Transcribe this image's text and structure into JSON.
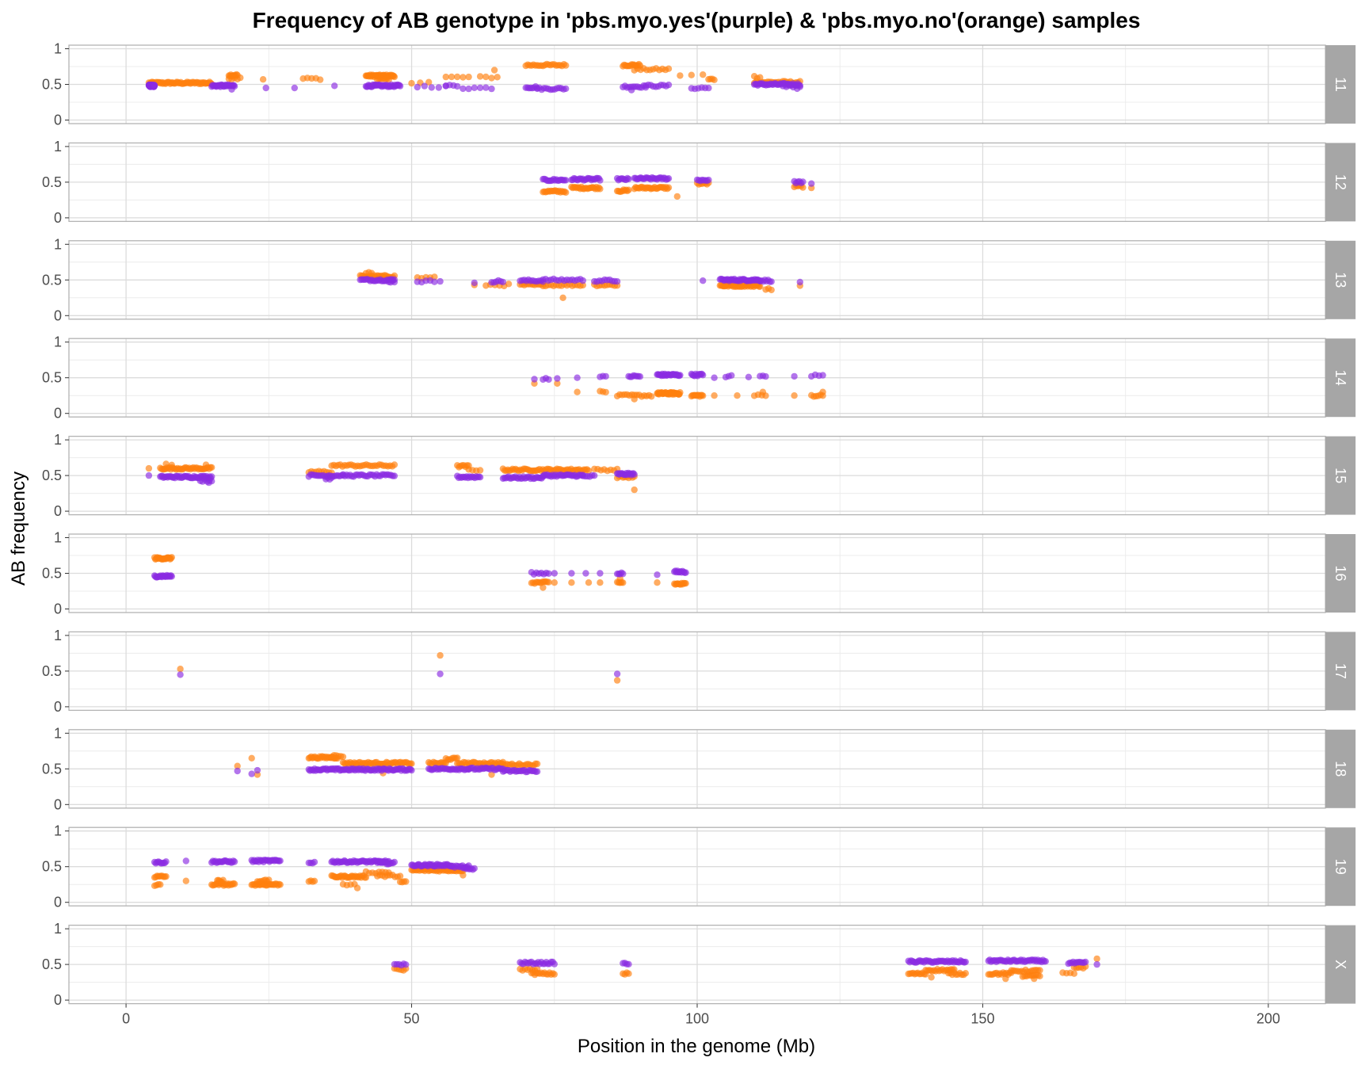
{
  "chart_data": {
    "type": "scatter",
    "title": "Frequency of AB genotype in 'pbs.myo.yes'(purple) & 'pbs.myo.no'(orange) samples",
    "xlabel": "Position in the genome (Mb)",
    "ylabel": "AB frequency",
    "xlim": [
      -10,
      210
    ],
    "ylim": [
      -0.05,
      1.05
    ],
    "x_ticks": [
      0,
      50,
      100,
      150,
      200
    ],
    "x_tick_labels": [
      "0",
      "50",
      "100",
      "150",
      "200"
    ],
    "y_ticks": [
      0,
      0.5,
      1
    ],
    "y_tick_labels": [
      "0",
      "0.5",
      "1"
    ],
    "grid": true,
    "facet_strip_color": "#a6a6a6",
    "panel_border_color": "#b3b3b3",
    "series": [
      {
        "key": "yes",
        "color": "#8a2be2"
      },
      {
        "key": "no",
        "color": "#ff7f0e"
      }
    ],
    "panels": [
      {
        "label": "11",
        "yes": [
          [
            4,
            5,
            55,
            0.48
          ],
          [
            15,
            19,
            30,
            0.48
          ],
          [
            24.5,
            0.45
          ],
          [
            29.5,
            0.45
          ],
          [
            36.5,
            0.48
          ],
          [
            42,
            48,
            40,
            0.48
          ],
          [
            51,
            56,
            5,
            0.47
          ],
          [
            56,
            58,
            4,
            0.48
          ],
          [
            59,
            64,
            6,
            0.45
          ],
          [
            70,
            72,
            8,
            0.46
          ],
          [
            72,
            77,
            14,
            0.44
          ],
          [
            87,
            91,
            12,
            0.47
          ],
          [
            91,
            95,
            10,
            0.48
          ],
          [
            99,
            102,
            6,
            0.45
          ],
          [
            110,
            118,
            40,
            0.5
          ],
          [
            115,
            118,
            6,
            0.47
          ],
          [
            117.5,
            0.44
          ],
          [
            88.5,
            0.42
          ],
          [
            18.5,
            0.43
          ]
        ],
        "no": [
          [
            4,
            15,
            60,
            0.52
          ],
          [
            18,
            19.5,
            10,
            0.63
          ],
          [
            24,
            0.57
          ],
          [
            31,
            34,
            5,
            0.58
          ],
          [
            42,
            47,
            40,
            0.62
          ],
          [
            44,
            46,
            8,
            0.57
          ],
          [
            50,
            53,
            3,
            0.53
          ],
          [
            56,
            60,
            5,
            0.6
          ],
          [
            62,
            65,
            4,
            0.6
          ],
          [
            64.5,
            0.7
          ],
          [
            70,
            77,
            22,
            0.77
          ],
          [
            87,
            90,
            15,
            0.77
          ],
          [
            89,
            95,
            12,
            0.71
          ],
          [
            97,
            101,
            3,
            0.63
          ],
          [
            102,
            103,
            4,
            0.57
          ],
          [
            110,
            118,
            25,
            0.53
          ],
          [
            110,
            111,
            3,
            0.6
          ],
          [
            18,
            20,
            5,
            0.58
          ]
        ]
      },
      {
        "label": "12",
        "yes": [
          [
            73,
            77,
            18,
            0.53
          ],
          [
            78,
            83,
            24,
            0.54
          ],
          [
            86,
            88,
            10,
            0.54
          ],
          [
            89,
            95,
            28,
            0.55
          ],
          [
            100,
            102,
            8,
            0.53
          ],
          [
            117,
            118.5,
            6,
            0.5
          ],
          [
            120,
            0.48
          ]
        ],
        "no": [
          [
            73,
            77,
            18,
            0.37
          ],
          [
            78,
            83,
            24,
            0.42
          ],
          [
            86,
            88,
            10,
            0.38
          ],
          [
            89,
            95,
            28,
            0.42
          ],
          [
            96.5,
            0.3
          ],
          [
            100,
            102,
            8,
            0.48
          ],
          [
            117,
            118.5,
            6,
            0.44
          ],
          [
            120,
            0.42
          ]
        ]
      },
      {
        "label": "13",
        "yes": [
          [
            41,
            47,
            25,
            0.5
          ],
          [
            46,
            47,
            4,
            0.48
          ],
          [
            51,
            54,
            5,
            0.48
          ],
          [
            55,
            0.48
          ],
          [
            61,
            0.46
          ],
          [
            64,
            66,
            6,
            0.48
          ],
          [
            69,
            73,
            12,
            0.49
          ],
          [
            73,
            80,
            16,
            0.5
          ],
          [
            82,
            86,
            10,
            0.49
          ],
          [
            101,
            0.49
          ],
          [
            104,
            111,
            40,
            0.5
          ],
          [
            111,
            113,
            8,
            0.49
          ],
          [
            118,
            0.47
          ]
        ],
        "no": [
          [
            41,
            47,
            25,
            0.55
          ],
          [
            42,
            43,
            3,
            0.6
          ],
          [
            51,
            54,
            5,
            0.53
          ],
          [
            61,
            0.43
          ],
          [
            63,
            67,
            6,
            0.43
          ],
          [
            69,
            73,
            12,
            0.43
          ],
          [
            73,
            80,
            16,
            0.43
          ],
          [
            76.5,
            0.25
          ],
          [
            82,
            86,
            10,
            0.43
          ],
          [
            104,
            111,
            40,
            0.42
          ],
          [
            112,
            113,
            3,
            0.37
          ],
          [
            118,
            0.42
          ]
        ]
      },
      {
        "label": "14",
        "yes": [
          [
            71.5,
            0.48
          ],
          [
            73,
            74,
            3,
            0.49
          ],
          [
            75.5,
            0.49
          ],
          [
            79,
            0.5
          ],
          [
            83,
            84,
            3,
            0.51
          ],
          [
            88,
            90,
            8,
            0.52
          ],
          [
            93,
            97,
            28,
            0.54
          ],
          [
            99,
            101,
            12,
            0.54
          ],
          [
            103,
            0.5
          ],
          [
            105,
            106,
            3,
            0.52
          ],
          [
            109,
            0.51
          ],
          [
            111,
            112,
            3,
            0.52
          ],
          [
            117,
            0.52
          ],
          [
            120,
            122,
            4,
            0.53
          ]
        ],
        "no": [
          [
            71.5,
            0.42
          ],
          [
            75.5,
            0.42
          ],
          [
            79,
            0.3
          ],
          [
            83,
            84,
            3,
            0.3
          ],
          [
            86,
            92,
            15,
            0.25
          ],
          [
            89,
            0.2
          ],
          [
            93,
            97,
            40,
            0.28
          ],
          [
            99,
            101,
            12,
            0.25
          ],
          [
            103,
            0.25
          ],
          [
            107,
            0.25
          ],
          [
            110,
            112,
            4,
            0.25
          ],
          [
            111.5,
            0.3
          ],
          [
            117,
            0.25
          ],
          [
            120,
            122,
            6,
            0.25
          ],
          [
            122,
            0.3
          ]
        ]
      },
      {
        "label": "15",
        "yes": [
          [
            4,
            0.5
          ],
          [
            6,
            15,
            50,
            0.48
          ],
          [
            13,
            15,
            6,
            0.43
          ],
          [
            14.5,
            0.4
          ],
          [
            32,
            38,
            20,
            0.5
          ],
          [
            35,
            36,
            4,
            0.46
          ],
          [
            38,
            47,
            30,
            0.5
          ],
          [
            58,
            62,
            18,
            0.48
          ],
          [
            66,
            73,
            30,
            0.47
          ],
          [
            73,
            80,
            30,
            0.5
          ],
          [
            80,
            82,
            6,
            0.49
          ],
          [
            86,
            89,
            18,
            0.52
          ]
        ],
        "no": [
          [
            4,
            0.6
          ],
          [
            6,
            15,
            40,
            0.6
          ],
          [
            7,
            8,
            2,
            0.65
          ],
          [
            14,
            0.65
          ],
          [
            32,
            36,
            10,
            0.55
          ],
          [
            36,
            47,
            30,
            0.64
          ],
          [
            58,
            60,
            8,
            0.63
          ],
          [
            60,
            62,
            4,
            0.58
          ],
          [
            66,
            81,
            55,
            0.58
          ],
          [
            82,
            86,
            8,
            0.58
          ],
          [
            86,
            89,
            10,
            0.48
          ],
          [
            89,
            0.3
          ]
        ]
      },
      {
        "label": "16",
        "yes": [
          [
            5,
            8,
            22,
            0.46
          ],
          [
            71,
            74,
            8,
            0.5
          ],
          [
            75,
            0.5
          ],
          [
            78,
            0.5
          ],
          [
            80.5,
            0.5
          ],
          [
            83,
            0.5
          ],
          [
            86,
            87,
            5,
            0.5
          ],
          [
            93,
            0.48
          ],
          [
            96,
            98,
            12,
            0.52
          ]
        ],
        "no": [
          [
            5,
            8,
            22,
            0.71
          ],
          [
            71,
            74,
            12,
            0.37
          ],
          [
            73,
            0.3
          ],
          [
            75,
            0.37
          ],
          [
            78,
            0.37
          ],
          [
            81,
            0.37
          ],
          [
            83,
            0.37
          ],
          [
            86,
            87,
            5,
            0.37
          ],
          [
            86.5,
            0.43
          ],
          [
            93,
            0.37
          ],
          [
            96,
            98,
            12,
            0.35
          ]
        ]
      },
      {
        "label": "17",
        "yes": [
          [
            9.5,
            0.45
          ],
          [
            55,
            0.46
          ],
          [
            86,
            0.46
          ]
        ],
        "no": [
          [
            9.5,
            0.53
          ],
          [
            55,
            0.72
          ],
          [
            86,
            0.37
          ]
        ]
      },
      {
        "label": "18",
        "yes": [
          [
            19.5,
            0.47
          ],
          [
            22,
            0.43
          ],
          [
            23,
            0.48
          ],
          [
            32,
            50,
            90,
            0.49
          ],
          [
            53,
            60,
            30,
            0.5
          ],
          [
            60,
            66,
            25,
            0.5
          ],
          [
            66,
            72,
            25,
            0.47
          ]
        ],
        "no": [
          [
            19.5,
            0.54
          ],
          [
            22,
            0.65
          ],
          [
            23,
            0.42
          ],
          [
            32,
            37,
            25,
            0.66
          ],
          [
            36,
            38,
            6,
            0.68
          ],
          [
            38,
            50,
            50,
            0.58
          ],
          [
            53,
            56,
            12,
            0.58
          ],
          [
            56,
            58,
            8,
            0.64
          ],
          [
            58,
            66,
            30,
            0.58
          ],
          [
            66,
            72,
            20,
            0.56
          ],
          [
            45,
            0.44
          ],
          [
            64,
            0.42
          ]
        ]
      },
      {
        "label": "19",
        "yes": [
          [
            5,
            7,
            10,
            0.56
          ],
          [
            10.5,
            0.58
          ],
          [
            15,
            19,
            20,
            0.57
          ],
          [
            22,
            27,
            25,
            0.58
          ],
          [
            32,
            33,
            4,
            0.56
          ],
          [
            36,
            46,
            50,
            0.57
          ],
          [
            44,
            47,
            12,
            0.55
          ],
          [
            50,
            57,
            40,
            0.52
          ],
          [
            57,
            60,
            12,
            0.5
          ],
          [
            59,
            61,
            8,
            0.47
          ]
        ],
        "no": [
          [
            5,
            7,
            10,
            0.36
          ],
          [
            5,
            6,
            4,
            0.24
          ],
          [
            10.5,
            0.3
          ],
          [
            15,
            19,
            20,
            0.25
          ],
          [
            16,
            17,
            6,
            0.3
          ],
          [
            22,
            27,
            25,
            0.25
          ],
          [
            23,
            25,
            8,
            0.3
          ],
          [
            32,
            33,
            4,
            0.3
          ],
          [
            36,
            42,
            30,
            0.36
          ],
          [
            42,
            46,
            8,
            0.42
          ],
          [
            38,
            40,
            4,
            0.25
          ],
          [
            40.5,
            0.2
          ],
          [
            44,
            48,
            10,
            0.37
          ],
          [
            48,
            49,
            4,
            0.28
          ],
          [
            50,
            59,
            40,
            0.45
          ],
          [
            59,
            0.38
          ]
        ]
      },
      {
        "label": "X",
        "yes": [
          [
            47,
            49,
            6,
            0.5
          ],
          [
            69,
            75,
            22,
            0.52
          ],
          [
            87,
            88,
            4,
            0.51
          ],
          [
            137,
            147,
            45,
            0.54
          ],
          [
            151,
            161,
            45,
            0.55
          ],
          [
            165,
            168,
            12,
            0.52
          ],
          [
            170,
            0.5
          ]
        ],
        "no": [
          [
            47,
            49,
            6,
            0.43
          ],
          [
            69,
            72,
            8,
            0.43
          ],
          [
            71,
            75,
            15,
            0.37
          ],
          [
            87,
            88,
            4,
            0.37
          ],
          [
            137,
            140,
            12,
            0.37
          ],
          [
            140,
            145,
            18,
            0.42
          ],
          [
            144,
            147,
            10,
            0.37
          ],
          [
            141,
            0.32
          ],
          [
            151,
            155,
            15,
            0.37
          ],
          [
            155,
            160,
            15,
            0.41
          ],
          [
            157,
            160,
            10,
            0.34
          ],
          [
            159,
            0.3
          ],
          [
            154,
            0.3
          ],
          [
            164,
            166,
            4,
            0.37
          ],
          [
            166,
            168,
            6,
            0.46
          ],
          [
            170,
            0.58
          ]
        ]
      }
    ]
  }
}
